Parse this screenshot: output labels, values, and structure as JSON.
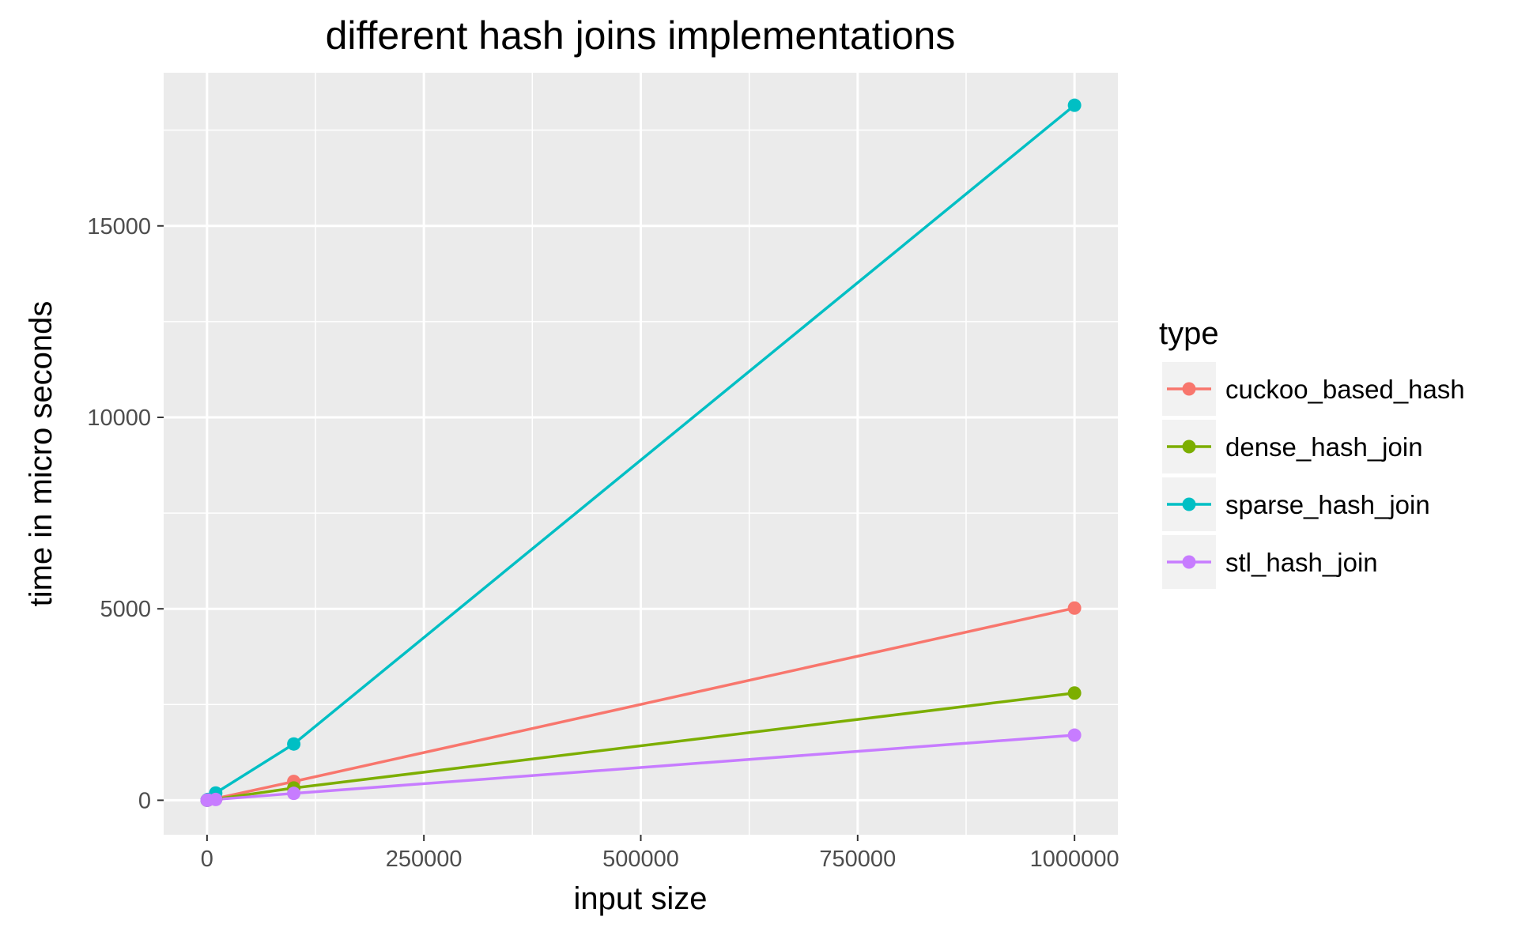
{
  "chart_data": {
    "type": "line",
    "title": "different hash joins implementations",
    "xlabel": "input size",
    "ylabel": "time in micro seconds",
    "x": [
      100,
      1000,
      10000,
      100000,
      1000000
    ],
    "xlim": [
      -50000,
      1050000
    ],
    "ylim": [
      -900,
      19000
    ],
    "xticks": [
      0,
      250000,
      500000,
      750000,
      1000000
    ],
    "xtick_labels": [
      "0",
      "250000",
      "500000",
      "750000",
      "1000000"
    ],
    "yticks": [
      0,
      5000,
      10000,
      15000
    ],
    "ytick_labels": [
      "0",
      "5000",
      "10000",
      "15000"
    ],
    "grid": true,
    "legend": {
      "title": "type",
      "position": "right"
    },
    "series": [
      {
        "name": "cuckoo_based_hash",
        "color": "#F8766D",
        "values": [
          2,
          10,
          45,
          490,
          5020
        ]
      },
      {
        "name": "dense_hash_join",
        "color": "#7CAE00",
        "values": [
          1,
          6,
          30,
          320,
          2800
        ]
      },
      {
        "name": "sparse_hash_join",
        "color": "#00BFC4",
        "values": [
          3,
          20,
          190,
          1470,
          18150
        ]
      },
      {
        "name": "stl_hash_join",
        "color": "#C77CFF",
        "values": [
          1,
          5,
          20,
          180,
          1700
        ]
      }
    ]
  }
}
